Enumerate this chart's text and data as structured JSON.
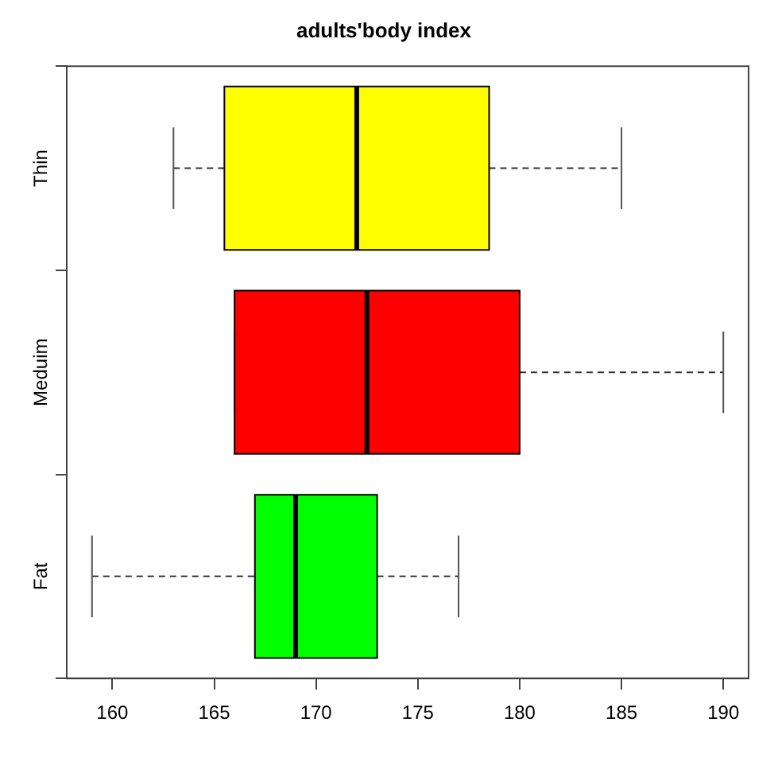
{
  "chart_data": {
    "type": "box",
    "title": "adults'body index",
    "orientation": "horizontal",
    "categories": [
      "Thin",
      "Meduim",
      "Fat"
    ],
    "colors": [
      "#ffff00",
      "#ff0000",
      "#00ff00"
    ],
    "xlim": [
      157.76,
      191.24
    ],
    "xticks": [
      160,
      165,
      170,
      175,
      180,
      185,
      190
    ],
    "line_style": "dashed",
    "boxes": [
      {
        "low": 163,
        "q1": 165.5,
        "median": 172,
        "q3": 178.5,
        "high": 185
      },
      {
        "low": 166,
        "q1": 166,
        "median": 172.5,
        "q3": 180,
        "high": 190
      },
      {
        "low": 159,
        "q1": 167,
        "median": 169,
        "q3": 173,
        "high": 177
      }
    ]
  }
}
